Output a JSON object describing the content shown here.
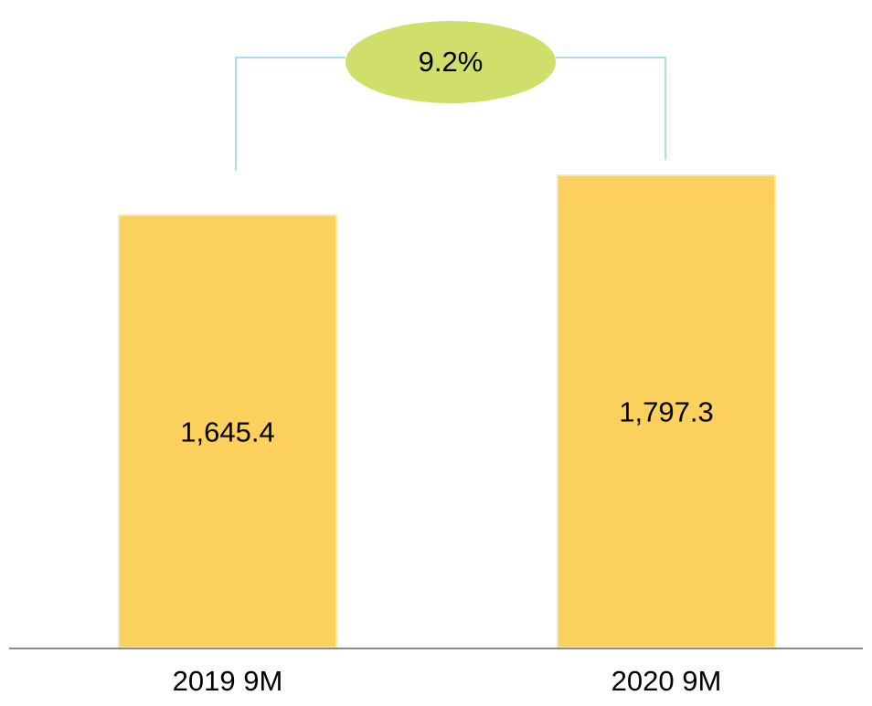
{
  "chart_data": {
    "type": "bar",
    "categories": [
      "2019 9M",
      "2020 9M"
    ],
    "values": [
      1645.4,
      1797.3
    ],
    "value_labels": [
      "1,645.4",
      "1,797.3"
    ],
    "color": "#fcd05c",
    "annotation": "9.2%"
  }
}
